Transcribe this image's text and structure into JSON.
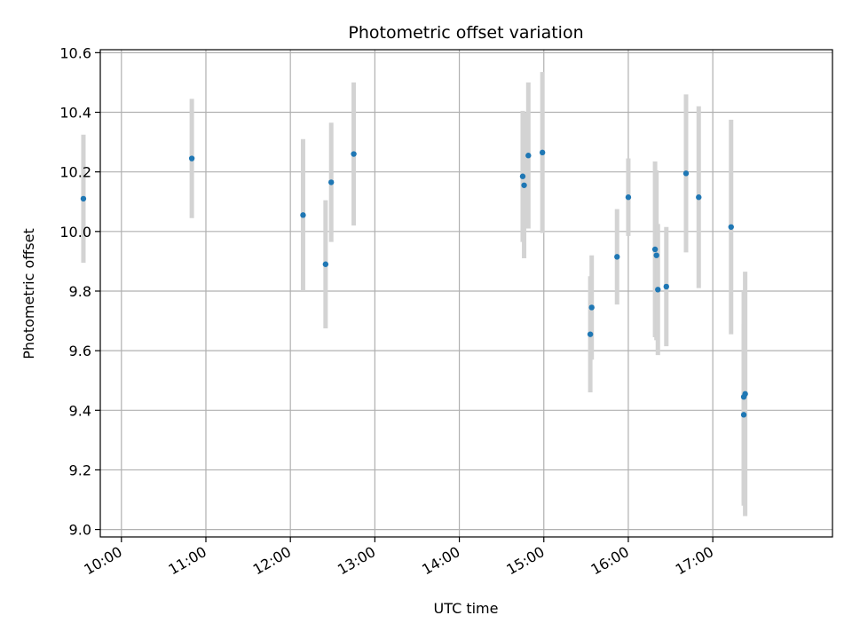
{
  "chart_data": {
    "type": "scatter",
    "title": "Photometric offset variation",
    "xlabel": "UTC time",
    "ylabel": "Photometric offset",
    "x_axis_type": "time",
    "xlim": [
      "09:45",
      "18:25"
    ],
    "ylim": [
      8.975,
      10.61
    ],
    "grid": true,
    "xticks": [
      "10:00",
      "11:00",
      "12:00",
      "13:00",
      "14:00",
      "15:00",
      "16:00",
      "17:00"
    ],
    "yticks": [
      9.0,
      9.2,
      9.4,
      9.6,
      9.8,
      10.0,
      10.2,
      10.4,
      10.6
    ],
    "ytick_labels": [
      "9.0",
      "9.2",
      "9.4",
      "9.6",
      "9.8",
      "10.0",
      "10.2",
      "10.4",
      "10.6"
    ],
    "colors": {
      "point": "#1f77b4",
      "errorbar": "#d3d3d3",
      "grid": "#b0b0b0"
    },
    "points": [
      {
        "x": "09:33",
        "y": 10.11,
        "err": 0.215
      },
      {
        "x": "10:50",
        "y": 10.245,
        "err": 0.2
      },
      {
        "x": "12:09",
        "y": 10.055,
        "err": 0.255
      },
      {
        "x": "12:25",
        "y": 9.89,
        "err": 0.215
      },
      {
        "x": "12:29",
        "y": 10.165,
        "err": 0.2
      },
      {
        "x": "12:45",
        "y": 10.26,
        "err": 0.24
      },
      {
        "x": "14:45",
        "y": 10.185,
        "err": 0.22
      },
      {
        "x": "14:46",
        "y": 10.155,
        "err": 0.245
      },
      {
        "x": "14:49",
        "y": 10.255,
        "err": 0.245
      },
      {
        "x": "14:59",
        "y": 10.265,
        "err": 0.27
      },
      {
        "x": "15:33",
        "y": 9.655,
        "err": 0.195
      },
      {
        "x": "15:34",
        "y": 9.745,
        "err": 0.175
      },
      {
        "x": "15:52",
        "y": 9.915,
        "err": 0.16
      },
      {
        "x": "16:00",
        "y": 10.115,
        "err": 0.13
      },
      {
        "x": "16:19",
        "y": 9.94,
        "err": 0.295
      },
      {
        "x": "16:20",
        "y": 9.92,
        "err": 0.285
      },
      {
        "x": "16:21",
        "y": 9.805,
        "err": 0.22
      },
      {
        "x": "16:27",
        "y": 9.815,
        "err": 0.2
      },
      {
        "x": "16:41",
        "y": 10.195,
        "err": 0.265
      },
      {
        "x": "16:50",
        "y": 10.115,
        "err": 0.305
      },
      {
        "x": "17:13",
        "y": 10.015,
        "err": 0.36
      },
      {
        "x": "17:22",
        "y": 9.385,
        "err": 0.305
      },
      {
        "x": "17:22",
        "y": 9.445,
        "err": 0.355
      },
      {
        "x": "17:23",
        "y": 9.455,
        "err": 0.41
      }
    ]
  }
}
